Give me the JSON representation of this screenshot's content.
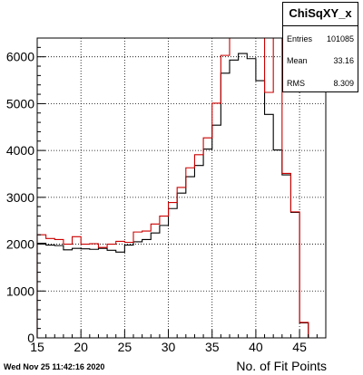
{
  "stats": {
    "title": "ChiSqXY_x",
    "rows": [
      {
        "label": "Entries",
        "value": "101085"
      },
      {
        "label": "Mean",
        "value": "33.16"
      },
      {
        "label": "RMS",
        "value": "8.309"
      }
    ]
  },
  "timestamp": "Wed Nov 25 11:42:16 2020",
  "chart_data": {
    "type": "histogram",
    "title": "",
    "xlabel": "No. of Fit Points",
    "ylabel": "",
    "xlim": [
      15,
      48
    ],
    "ylim": [
      0,
      6400
    ],
    "grid": true,
    "x_ticks": [
      15,
      20,
      25,
      30,
      35,
      40,
      45
    ],
    "y_ticks": [
      0,
      1000,
      2000,
      3000,
      4000,
      5000,
      6000
    ],
    "bin_edges": [
      15,
      16,
      17,
      18,
      19,
      20,
      21,
      22,
      23,
      24,
      25,
      26,
      27,
      28,
      29,
      30,
      31,
      32,
      33,
      34,
      35,
      36,
      37,
      38,
      39,
      40,
      41,
      42,
      43,
      44,
      45,
      46,
      47
    ],
    "series": [
      {
        "color": "#000000",
        "values": [
          2020,
          1980,
          1970,
          1880,
          1910,
          1900,
          1890,
          1910,
          1870,
          1830,
          1980,
          2050,
          2100,
          2240,
          2400,
          2760,
          3090,
          3440,
          3680,
          4030,
          4540,
          5650,
          5930,
          6070,
          5960,
          5490,
          4770,
          4010,
          3480,
          2680,
          320,
          0
        ]
      },
      {
        "color": "#cc0000",
        "values": [
          2200,
          2120,
          2100,
          2000,
          2160,
          2000,
          2010,
          1930,
          2000,
          2060,
          2040,
          2260,
          2280,
          2430,
          2600,
          2890,
          3210,
          3630,
          3910,
          4270,
          5010,
          6030,
          6400,
          6400,
          6400,
          6400,
          5240,
          6400,
          3510,
          2690,
          330,
          0
        ]
      }
    ]
  }
}
